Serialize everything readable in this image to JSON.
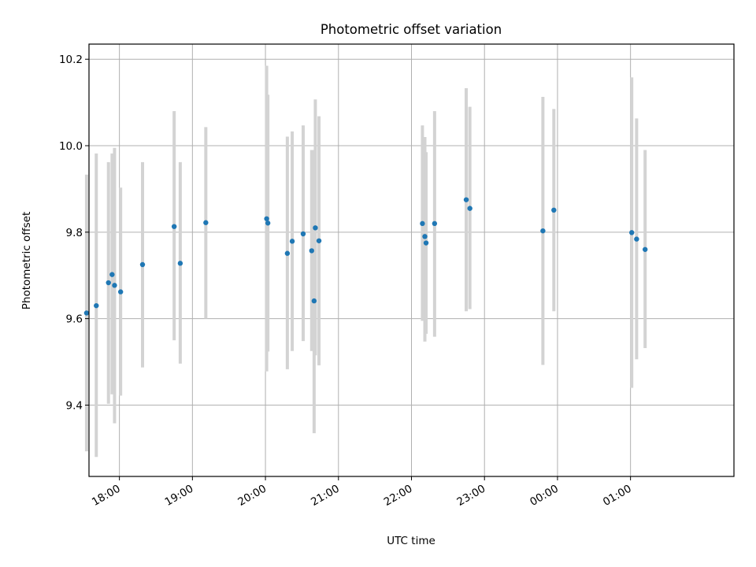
{
  "chart_data": {
    "type": "scatter",
    "title": "Photometric offset variation",
    "xlabel": "UTC time",
    "ylabel": "Photometric offset",
    "x_axis_kind": "time",
    "xlim": [
      "17:35",
      "26:25"
    ],
    "ylim": [
      9.235,
      10.235
    ],
    "xticks": [
      {
        "label": "18:00",
        "value": "18:00"
      },
      {
        "label": "19:00",
        "value": "19:00"
      },
      {
        "label": "20:00",
        "value": "20:00"
      },
      {
        "label": "21:00",
        "value": "21:00"
      },
      {
        "label": "22:00",
        "value": "22:00"
      },
      {
        "label": "23:00",
        "value": "23:00"
      },
      {
        "label": "00:00",
        "value": "24:00"
      },
      {
        "label": "01:00",
        "value": "25:00"
      }
    ],
    "yticks": [
      9.4,
      9.6,
      9.8,
      10.0,
      10.2
    ],
    "grid": true,
    "colors": {
      "point": "#1f77b4",
      "errorbar": "#d3d3d3",
      "grid": "#b0b0b0"
    },
    "points": [
      {
        "x": "17:33",
        "y": 9.613,
        "low": 9.293,
        "high": 9.933
      },
      {
        "x": "17:41",
        "y": 9.63,
        "low": 9.28,
        "high": 9.982
      },
      {
        "x": "17:51",
        "y": 9.683,
        "low": 9.403,
        "high": 9.962
      },
      {
        "x": "17:54",
        "y": 9.702,
        "low": 9.425,
        "high": 9.982
      },
      {
        "x": "17:56",
        "y": 9.677,
        "low": 9.358,
        "high": 9.995
      },
      {
        "x": "18:01",
        "y": 9.662,
        "low": 9.422,
        "high": 9.903
      },
      {
        "x": "18:19",
        "y": 9.725,
        "low": 9.487,
        "high": 9.962
      },
      {
        "x": "18:45",
        "y": 9.813,
        "low": 9.55,
        "high": 10.08
      },
      {
        "x": "18:50",
        "y": 9.728,
        "low": 9.496,
        "high": 9.962
      },
      {
        "x": "19:11",
        "y": 9.822,
        "low": 9.6,
        "high": 10.043
      },
      {
        "x": "20:01",
        "y": 9.831,
        "low": 9.478,
        "high": 10.185
      },
      {
        "x": "20:02",
        "y": 9.821,
        "low": 9.524,
        "high": 10.118
      },
      {
        "x": "20:18",
        "y": 9.751,
        "low": 9.483,
        "high": 10.021
      },
      {
        "x": "20:22",
        "y": 9.779,
        "low": 9.525,
        "high": 10.033
      },
      {
        "x": "20:31",
        "y": 9.796,
        "low": 9.548,
        "high": 10.047
      },
      {
        "x": "20:38",
        "y": 9.757,
        "low": 9.525,
        "high": 9.99
      },
      {
        "x": "20:40",
        "y": 9.641,
        "low": 9.335,
        "high": 9.99
      },
      {
        "x": "20:41",
        "y": 9.81,
        "low": 9.515,
        "high": 10.107
      },
      {
        "x": "20:44",
        "y": 9.78,
        "low": 9.492,
        "high": 10.068
      },
      {
        "x": "22:09",
        "y": 9.82,
        "low": 9.595,
        "high": 10.047
      },
      {
        "x": "22:11",
        "y": 9.79,
        "low": 9.547,
        "high": 10.02
      },
      {
        "x": "22:12",
        "y": 9.775,
        "low": 9.565,
        "high": 9.985
      },
      {
        "x": "22:19",
        "y": 9.82,
        "low": 9.558,
        "high": 10.08
      },
      {
        "x": "22:45",
        "y": 9.875,
        "low": 9.617,
        "high": 10.133
      },
      {
        "x": "22:48",
        "y": 9.855,
        "low": 9.622,
        "high": 10.09
      },
      {
        "x": "23:48",
        "y": 9.803,
        "low": 9.493,
        "high": 10.113
      },
      {
        "x": "23:57",
        "y": 9.851,
        "low": 9.617,
        "high": 10.085
      },
      {
        "x": "25:01",
        "y": 9.799,
        "low": 9.44,
        "high": 10.158
      },
      {
        "x": "25:05",
        "y": 9.784,
        "low": 9.506,
        "high": 10.063
      },
      {
        "x": "25:12",
        "y": 9.76,
        "low": 9.532,
        "high": 9.99
      }
    ]
  }
}
